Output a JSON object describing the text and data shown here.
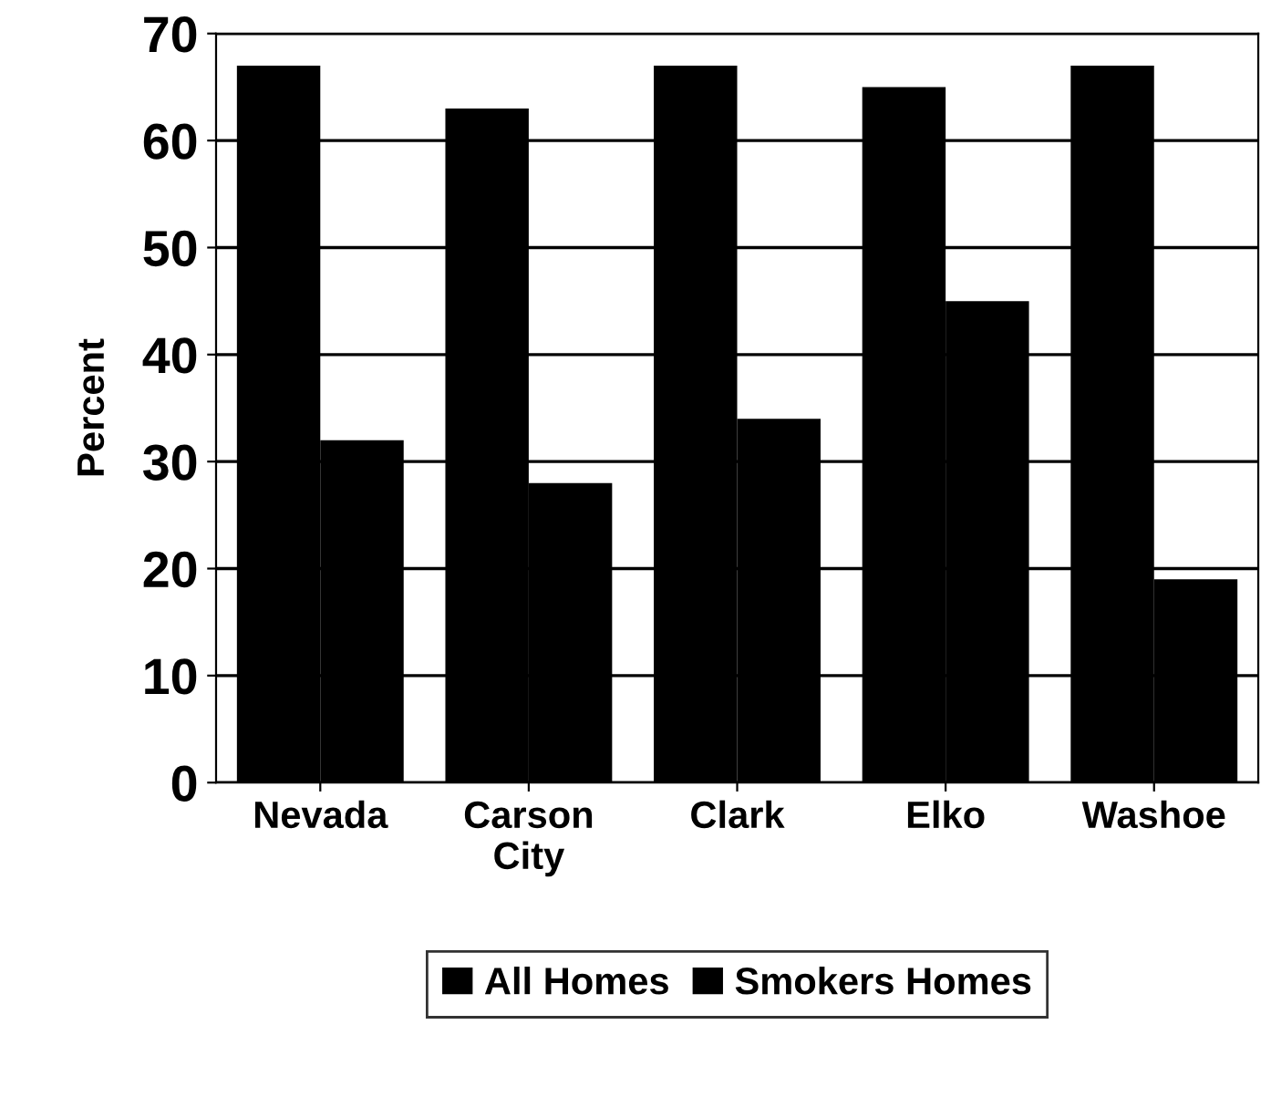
{
  "chart_data": {
    "type": "bar",
    "ylabel": "Percent",
    "categories": [
      "Nevada",
      "Carson\nCity",
      "Clark",
      "Elko",
      "Washoe"
    ],
    "series": [
      {
        "name": "All Homes",
        "color": "#000000",
        "values": [
          67,
          63,
          67,
          65,
          67
        ]
      },
      {
        "name": "Smokers Homes",
        "color": "#000000",
        "values": [
          32,
          28,
          34,
          45,
          19
        ]
      }
    ],
    "ylim": [
      0,
      70
    ],
    "yticks": [
      0,
      10,
      20,
      30,
      40,
      50,
      60,
      70
    ],
    "grid": "y",
    "legend": "bottom"
  }
}
